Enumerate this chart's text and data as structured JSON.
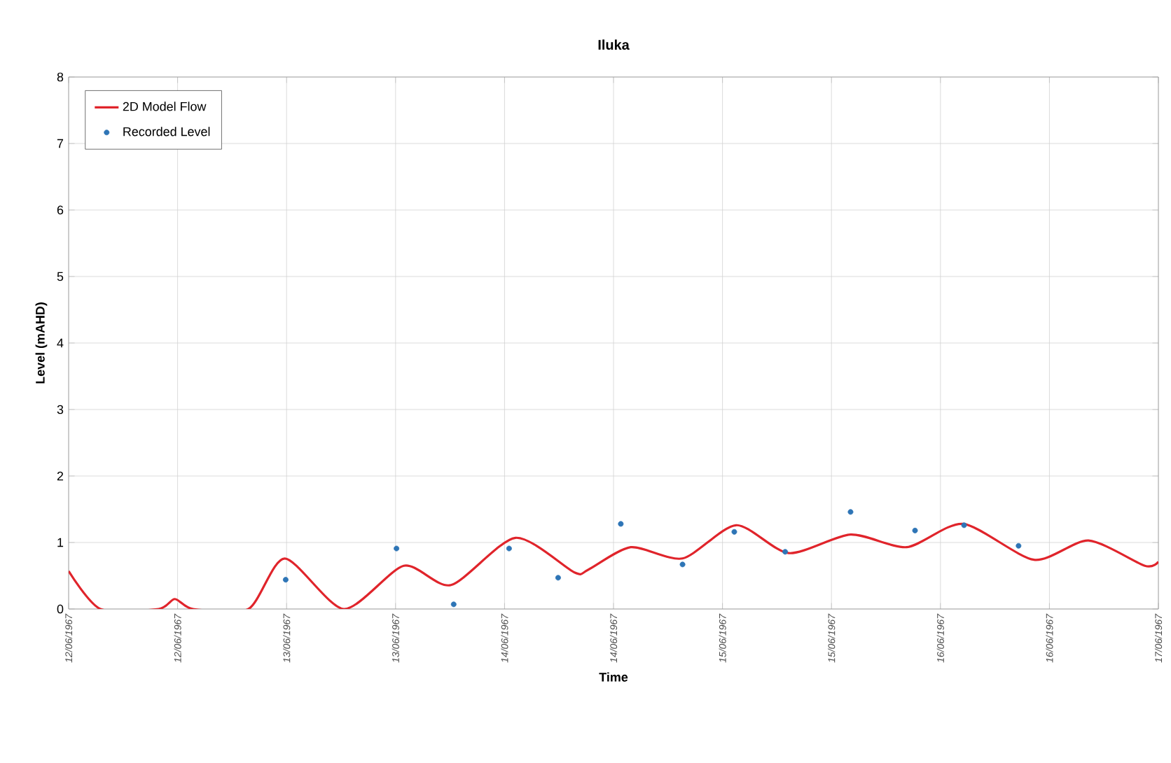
{
  "chart_data": {
    "type": "line",
    "title": "Iluka",
    "xlabel": "Time",
    "ylabel": "Level (mAHD)",
    "xlim": [
      "1967-06-12T00:00",
      "1967-06-17T00:00"
    ],
    "ylim": [
      0,
      8
    ],
    "yticks": [
      0,
      1,
      2,
      3,
      4,
      5,
      6,
      7,
      8
    ],
    "xticks": [
      {
        "value": "1967-06-12T00:00",
        "label": "12/06/1967"
      },
      {
        "value": "1967-06-12T12:00",
        "label": "12/06/1967"
      },
      {
        "value": "1967-06-13T00:00",
        "label": "13/06/1967"
      },
      {
        "value": "1967-06-13T12:00",
        "label": "13/06/1967"
      },
      {
        "value": "1967-06-14T00:00",
        "label": "14/06/1967"
      },
      {
        "value": "1967-06-14T12:00",
        "label": "14/06/1967"
      },
      {
        "value": "1967-06-15T00:00",
        "label": "15/06/1967"
      },
      {
        "value": "1967-06-15T12:00",
        "label": "15/06/1967"
      },
      {
        "value": "1967-06-16T00:00",
        "label": "16/06/1967"
      },
      {
        "value": "1967-06-16T12:00",
        "label": "16/06/1967"
      },
      {
        "value": "1967-06-17T00:00",
        "label": "17/06/1967"
      }
    ],
    "grid": true,
    "legend": "top left",
    "series": [
      {
        "name": "2D Model Flow",
        "color": "#e0242b",
        "marker": "none",
        "line_style": "solid",
        "x": [
          "1967-06-12T00:00",
          "1967-06-12T03:30",
          "1967-06-12T09:54",
          "1967-06-12T11:42",
          "1967-06-12T13:42",
          "1967-06-12T19:48",
          "1967-06-12T23:48",
          "1967-06-13T06:18",
          "1967-06-13T12:54",
          "1967-06-13T18:06",
          "1967-06-14T01:12",
          "1967-06-14T07:42",
          "1967-06-14T09:12",
          "1967-06-14T13:54",
          "1967-06-14T19:36",
          "1967-06-15T01:30",
          "1967-06-15T07:18",
          "1967-06-15T14:06",
          "1967-06-15T20:18",
          "1967-06-16T02:30",
          "1967-06-16T10:18",
          "1967-06-16T16:18",
          "1967-06-16T22:30",
          "1967-06-17T00:00"
        ],
        "values": [
          0.57,
          0,
          0,
          0.15,
          0,
          0,
          0.76,
          0,
          0.65,
          0.36,
          1.07,
          0.55,
          0.59,
          0.93,
          0.76,
          1.26,
          0.84,
          1.12,
          0.93,
          1.28,
          0.74,
          1.03,
          0.65,
          0.71
        ]
      },
      {
        "name": "Recorded Level",
        "type": "scatter",
        "color": "#2e75b6",
        "marker": "circle",
        "x": [
          "1967-06-12T23:54",
          "1967-06-13T12:06",
          "1967-06-13T18:24",
          "1967-06-14T00:30",
          "1967-06-14T05:54",
          "1967-06-14T12:48",
          "1967-06-14T19:36",
          "1967-06-15T01:18",
          "1967-06-15T06:54",
          "1967-06-15T14:06",
          "1967-06-15T21:12",
          "1967-06-16T02:36",
          "1967-06-16T08:36"
        ],
        "values": [
          0.44,
          0.91,
          0.07,
          0.91,
          0.47,
          1.28,
          0.67,
          1.16,
          0.86,
          1.46,
          1.18,
          1.26,
          0.95
        ]
      }
    ]
  }
}
